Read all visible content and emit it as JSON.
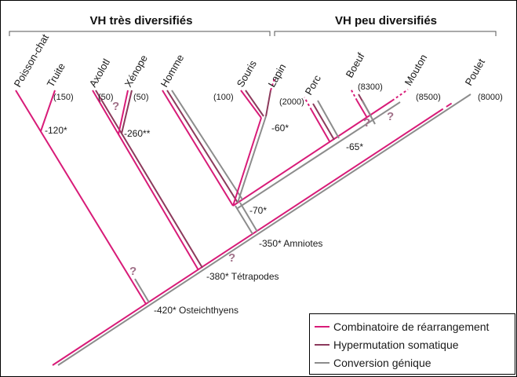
{
  "colors": {
    "rearrangement": "#d81b78",
    "hypermutation": "#8c3a5c",
    "conversion": "#8c8c8c",
    "question": "#a07088",
    "text": "#1a1a1a"
  },
  "groups": {
    "left": "VH très diversifiés",
    "right": "VH peu diversifiés"
  },
  "taxa": {
    "poisson_chat": "Poisson-chat",
    "truite": "Truite",
    "axolotl": "Axolotl",
    "xenope": "Xénope",
    "homme": "Homme",
    "souris": "Souris",
    "lapin": "Lapin",
    "porc": "Porc",
    "boeuf": "Boeuf",
    "mouton": "Mouton",
    "poulet": "Poulet"
  },
  "counts": {
    "truite": "(150)",
    "axolotl": "(50)",
    "xenope": "(50)",
    "souris": "(100)",
    "lapin": "(2000)",
    "boeuf": "(8300)",
    "mouton": "(8500)",
    "poulet": "(8000)"
  },
  "nodes": {
    "n120": "-120*",
    "n260": "-260**",
    "n60": "-60*",
    "n65": "-65*",
    "n70": "-70*",
    "n350": "-350* Amniotes",
    "n380": "-380* Tétrapodes",
    "n420": "-420* Osteichthyens"
  },
  "question_mark": "?",
  "legend": [
    {
      "label": "Combinatoire de réarrangement",
      "color": "#d81b78"
    },
    {
      "label": "Hypermutation somatique",
      "color": "#8c3a5c"
    },
    {
      "label": "Conversion génique",
      "color": "#8c8c8c"
    }
  ]
}
